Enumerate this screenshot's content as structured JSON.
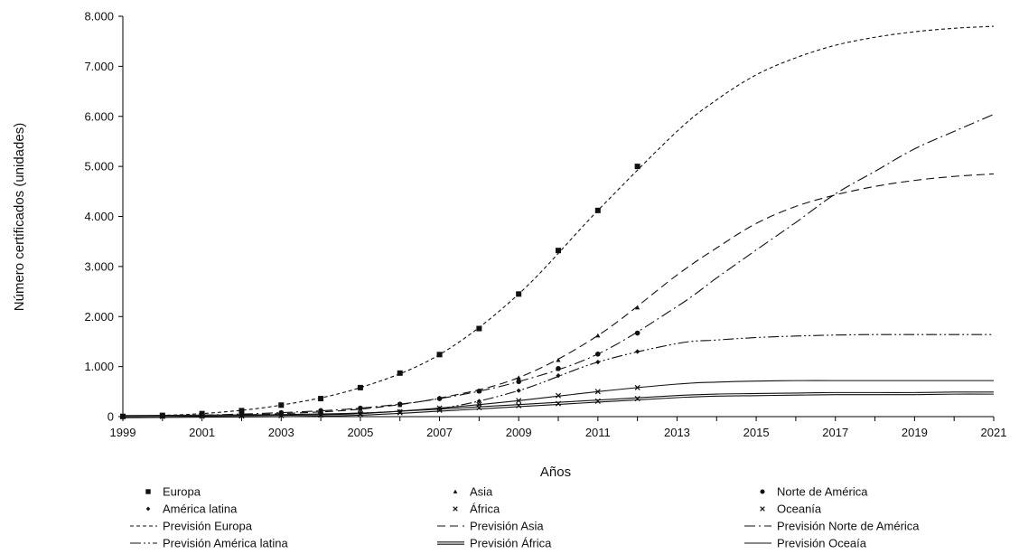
{
  "chart_data": {
    "type": "line",
    "xlabel": "Años",
    "ylabel": "Número certificados (unidades)",
    "xlim": [
      1999,
      2021
    ],
    "ylim": [
      0,
      8000
    ],
    "x_ticks": [
      "1999",
      "2001",
      "2003",
      "2005",
      "2007",
      "2009",
      "2011",
      "2013",
      "2015",
      "2017",
      "2019",
      "2021"
    ],
    "y_ticks": [
      "0",
      "1.000",
      "2.000",
      "3.000",
      "4.000",
      "5.000",
      "6.000",
      "7.000",
      "8.000"
    ],
    "grid": false,
    "legend_position": "bottom",
    "observed_series": [
      {
        "name": "Europa",
        "marker": "square",
        "x": [
          1999,
          2000,
          2001,
          2002,
          2003,
          2004,
          2005,
          2006,
          2007,
          2008,
          2009,
          2010,
          2011,
          2012
        ],
        "values": [
          5,
          25,
          60,
          120,
          230,
          360,
          580,
          870,
          1240,
          1760,
          2450,
          3320,
          4120,
          5000
        ]
      },
      {
        "name": "Asia",
        "marker": "triangle",
        "x": [
          1999,
          2000,
          2001,
          2002,
          2003,
          2004,
          2005,
          2006,
          2007,
          2008,
          2009,
          2010,
          2011,
          2012
        ],
        "values": [
          0,
          5,
          15,
          30,
          60,
          100,
          150,
          230,
          370,
          510,
          780,
          1130,
          1620,
          2180
        ]
      },
      {
        "name": "Norte de América",
        "marker": "circle",
        "x": [
          1999,
          2000,
          2001,
          2002,
          2003,
          2004,
          2005,
          2006,
          2007,
          2008,
          2009,
          2010,
          2011,
          2012
        ],
        "values": [
          0,
          10,
          30,
          50,
          80,
          120,
          170,
          250,
          360,
          510,
          700,
          960,
          1250,
          1670
        ]
      },
      {
        "name": "América latina",
        "marker": "diamond",
        "x": [
          1999,
          2000,
          2001,
          2002,
          2003,
          2004,
          2005,
          2006,
          2007,
          2008,
          2009,
          2010,
          2011,
          2012
        ],
        "values": [
          0,
          5,
          10,
          20,
          30,
          45,
          70,
          100,
          160,
          310,
          520,
          820,
          1090,
          1300
        ]
      },
      {
        "name": "África",
        "marker": "x",
        "x": [
          1999,
          2000,
          2001,
          2002,
          2003,
          2004,
          2005,
          2006,
          2007,
          2008,
          2009,
          2010,
          2011,
          2012
        ],
        "values": [
          0,
          5,
          10,
          15,
          20,
          30,
          50,
          80,
          130,
          180,
          220,
          260,
          310,
          360
        ]
      },
      {
        "name": "Oceanía",
        "marker": "x",
        "x": [
          1999,
          2000,
          2001,
          2002,
          2003,
          2004,
          2005,
          2006,
          2007,
          2008,
          2009,
          2010,
          2011,
          2012
        ],
        "values": [
          0,
          5,
          10,
          15,
          25,
          40,
          60,
          100,
          170,
          240,
          320,
          420,
          500,
          580
        ]
      }
    ],
    "forecast_series": [
      {
        "name": "Previsión Europa",
        "dash": "short-dash",
        "x": [
          1999,
          2001,
          2003,
          2005,
          2007,
          2009,
          2011,
          2013,
          2014,
          2015,
          2016,
          2017,
          2018,
          2019,
          2020,
          2021
        ],
        "values": [
          5,
          60,
          230,
          580,
          1240,
          2450,
          4120,
          5700,
          6330,
          6830,
          7170,
          7420,
          7580,
          7690,
          7760,
          7800
        ]
      },
      {
        "name": "Previsión Asia",
        "dash": "long-dash",
        "x": [
          1999,
          2001,
          2003,
          2005,
          2007,
          2009,
          2011,
          2013,
          2014,
          2015,
          2016,
          2017,
          2018,
          2019,
          2020,
          2021
        ],
        "values": [
          0,
          15,
          60,
          150,
          370,
          780,
          1620,
          2830,
          3370,
          3860,
          4200,
          4430,
          4600,
          4720,
          4800,
          4850
        ]
      },
      {
        "name": "Previsión Norte de America",
        "dash": "dash-dot",
        "x": [
          1999,
          2001,
          2003,
          2005,
          2007,
          2009,
          2011,
          2013,
          2014,
          2015,
          2016,
          2017,
          2018,
          2019,
          2020,
          2021
        ],
        "values": [
          0,
          30,
          80,
          170,
          360,
          700,
          1250,
          2200,
          2770,
          3330,
          3880,
          4450,
          4900,
          5350,
          5700,
          6040
        ]
      },
      {
        "name": "Previsión America latina",
        "dash": "dash-dot-dot",
        "x": [
          1999,
          2001,
          2003,
          2005,
          2007,
          2009,
          2011,
          2013,
          2014,
          2015,
          2016,
          2017,
          2018,
          2019,
          2020,
          2021
        ],
        "values": [
          0,
          10,
          30,
          70,
          160,
          520,
          1090,
          1460,
          1530,
          1580,
          1610,
          1630,
          1640,
          1640,
          1640,
          1640
        ]
      },
      {
        "name": "Previsión África",
        "dash": "double",
        "x": [
          1999,
          2001,
          2003,
          2005,
          2007,
          2009,
          2011,
          2013,
          2014,
          2015,
          2016,
          2017,
          2018,
          2019,
          2020,
          2021
        ],
        "values": [
          0,
          10,
          20,
          50,
          130,
          220,
          310,
          400,
          430,
          440,
          450,
          460,
          460,
          460,
          470,
          470
        ]
      },
      {
        "name": "Previsión Oceaía",
        "dash": "solid",
        "x": [
          1999,
          2001,
          2003,
          2005,
          2007,
          2009,
          2011,
          2013,
          2014,
          2015,
          2016,
          2017,
          2018,
          2019,
          2020,
          2021
        ],
        "values": [
          0,
          10,
          25,
          60,
          170,
          320,
          500,
          650,
          690,
          710,
          720,
          720,
          720,
          720,
          720,
          720
        ]
      }
    ],
    "legend": {
      "items": [
        {
          "label": "Europa",
          "symbol": "square"
        },
        {
          "label": "Asia",
          "symbol": "triangle"
        },
        {
          "label": "Norte de América",
          "symbol": "circle"
        },
        {
          "label": "América latina",
          "symbol": "diamond"
        },
        {
          "label": "África",
          "symbol": "x"
        },
        {
          "label": "Oceanía",
          "symbol": "x"
        },
        {
          "label": "Previsión Europa",
          "symbol": "short-dash"
        },
        {
          "label": "Previsión Asia",
          "symbol": "long-dash"
        },
        {
          "label": "Previsión Norte de América",
          "symbol": "dash-dot"
        },
        {
          "label": "Previsión América latina",
          "symbol": "dash-dot-dot"
        },
        {
          "label": "Previsión África",
          "symbol": "double"
        },
        {
          "label": "Previsión Oceaía",
          "symbol": "solid"
        }
      ]
    },
    "colors": {
      "line": "#111111",
      "axis": "#000000",
      "background": "#ffffff"
    }
  }
}
